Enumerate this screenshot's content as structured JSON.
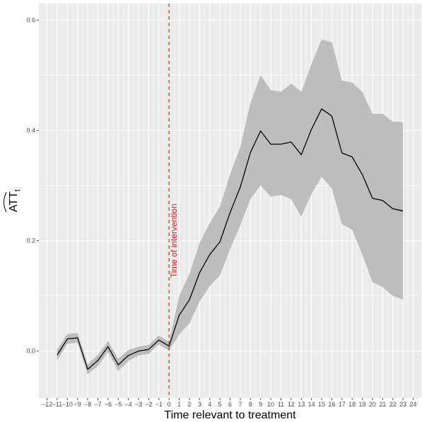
{
  "chart_data": {
    "type": "line",
    "xlabel": "Time relevant to treatment",
    "ylabel": "ATT",
    "ylabel_subscript": "t",
    "xlim": [
      -12.8,
      24.8
    ],
    "ylim": [
      -0.085,
      0.63
    ],
    "x_ticks": [
      -12,
      -11,
      -10,
      -9,
      -8,
      -7,
      -6,
      -5,
      -4,
      -3,
      -2,
      -1,
      0,
      1,
      2,
      3,
      4,
      5,
      6,
      7,
      8,
      9,
      10,
      11,
      12,
      13,
      14,
      15,
      16,
      17,
      18,
      19,
      20,
      21,
      22,
      23,
      24
    ],
    "x_tick_labels": [
      "−12",
      "−11",
      "−10",
      "−9",
      "−8",
      "−7",
      "−6",
      "−5",
      "−4",
      "−3",
      "−2",
      "−1",
      "0",
      "1",
      "2",
      "3",
      "4",
      "5",
      "6",
      "7",
      "8",
      "9",
      "10",
      "11",
      "12",
      "13",
      "14",
      "15",
      "16",
      "17",
      "18",
      "19",
      "20",
      "21",
      "22",
      "23",
      "24"
    ],
    "y_ticks": [
      0.0,
      0.2,
      0.4,
      0.6
    ],
    "y_tick_labels": [
      "0.0",
      "0.2",
      "0.4",
      "0.6"
    ],
    "grid": true,
    "x": [
      -11,
      -10,
      -9,
      -8,
      -7,
      -6,
      -5,
      -4,
      -3,
      -2,
      -1,
      0,
      1,
      2,
      3,
      4,
      5,
      6,
      7,
      8,
      9,
      10,
      11,
      12,
      13,
      14,
      15,
      16,
      17,
      18,
      19,
      20,
      21,
      22,
      23
    ],
    "estimate": [
      -0.007,
      0.022,
      0.024,
      -0.033,
      -0.017,
      0.008,
      -0.025,
      -0.008,
      0.0,
      0.003,
      0.02,
      0.009,
      0.065,
      0.093,
      0.142,
      0.175,
      0.198,
      0.251,
      0.297,
      0.36,
      0.399,
      0.375,
      0.375,
      0.379,
      0.356,
      0.402,
      0.439,
      0.426,
      0.359,
      0.352,
      0.32,
      0.277,
      0.273,
      0.258,
      0.254
    ],
    "ci_upper": [
      0.003,
      0.031,
      0.033,
      -0.024,
      -0.007,
      0.018,
      -0.014,
      0.002,
      0.008,
      0.011,
      0.028,
      0.017,
      0.1,
      0.14,
      0.196,
      0.232,
      0.262,
      0.32,
      0.37,
      0.45,
      0.5,
      0.473,
      0.47,
      0.485,
      0.47,
      0.52,
      0.565,
      0.56,
      0.49,
      0.487,
      0.47,
      0.43,
      0.43,
      0.416,
      0.415
    ],
    "ci_lower": [
      -0.017,
      0.013,
      0.015,
      -0.042,
      -0.027,
      -0.002,
      -0.036,
      -0.018,
      -0.008,
      -0.005,
      0.012,
      0.001,
      0.03,
      0.05,
      0.09,
      0.118,
      0.137,
      0.185,
      0.228,
      0.276,
      0.3,
      0.28,
      0.283,
      0.275,
      0.244,
      0.285,
      0.316,
      0.295,
      0.23,
      0.22,
      0.175,
      0.125,
      0.116,
      0.1,
      0.093
    ],
    "vline_x": 0,
    "annotation": "Time of intervention",
    "colors": {
      "panel": "#ebebeb",
      "grid": "#ffffff",
      "line": "#000000",
      "ribbon": "#bdbdbd",
      "vline": "#e41a1c",
      "tick": "#4d4d4d"
    }
  }
}
